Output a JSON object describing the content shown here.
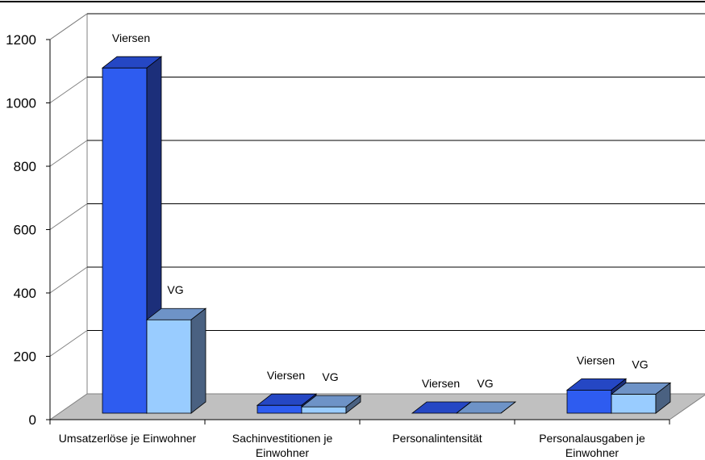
{
  "chart_data": {
    "type": "bar",
    "categories": [
      [
        "Umsatzerlöse je Einwohner"
      ],
      [
        "Sachinvestitionen je",
        "Einwohner"
      ],
      [
        "Personalintensität"
      ],
      [
        "Personalausgaben je",
        "Einwohner"
      ]
    ],
    "series": [
      {
        "name": "Viersen",
        "values": [
          1090,
          25,
          0,
          73
        ],
        "color": "#2e5cf0",
        "top_color": "#2547c4",
        "side_color": "#1c2f7a",
        "label": "Viersen"
      },
      {
        "name": "VG",
        "values": [
          295,
          20,
          0,
          60
        ],
        "color": "#99ccff",
        "top_color": "#6e93c7",
        "side_color": "#4a6181",
        "label": "VG"
      }
    ],
    "yticks": [
      "0",
      "200",
      "400",
      "600",
      "800",
      "1000",
      "1200"
    ],
    "ylim": [
      0,
      1200
    ],
    "grid": true,
    "title": "",
    "xlabel": "",
    "ylabel": ""
  }
}
